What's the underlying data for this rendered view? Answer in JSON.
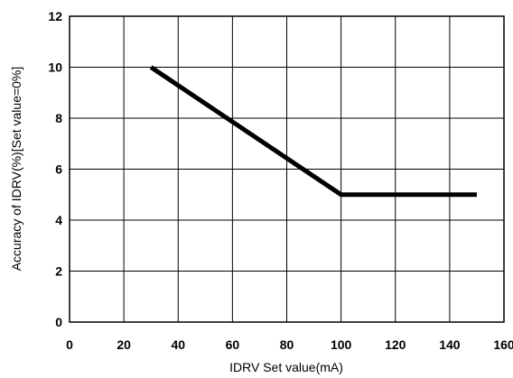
{
  "chart_data": {
    "type": "line",
    "xlabel": "IDRV Set value(mA)",
    "ylabel": "Accuracy of IDRV(%)[Set value=0%]",
    "xlim": [
      0,
      160
    ],
    "ylim": [
      0,
      12
    ],
    "xticks": [
      0,
      20,
      40,
      60,
      80,
      100,
      120,
      140,
      160
    ],
    "yticks": [
      0,
      2,
      4,
      6,
      8,
      10,
      12
    ],
    "grid": true,
    "legend": "none",
    "series": [
      {
        "color": "#000000",
        "points": [
          [
            30,
            10
          ],
          [
            100,
            5
          ],
          [
            150,
            5
          ]
        ]
      }
    ]
  }
}
